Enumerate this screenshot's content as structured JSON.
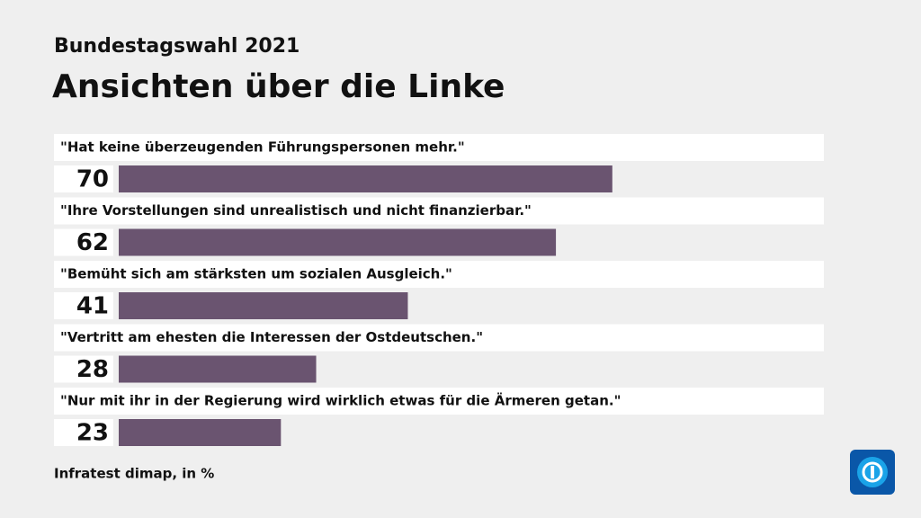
{
  "chart_data": {
    "type": "hbar",
    "subtitle": "Bundestagswahl 2021",
    "title": "Ansichten über die Linke",
    "categories": [
      "\"Hat keine überzeugenden Führungspersonen mehr.\"",
      "\"Ihre Vorstellungen sind unrealistisch und nicht finanzierbar.\"",
      "\"Bemüht sich am stärksten um sozialen Ausgleich.\"",
      "\"Vertritt am ehesten die Interessen der Ostdeutschen.\"",
      "\"Nur mit ihr in der Regierung wird wirklich etwas für die Ärmeren getan.\""
    ],
    "values": [
      70,
      62,
      41,
      28,
      23
    ],
    "color": "#6a5470",
    "xlim": [
      0,
      100
    ],
    "source": "Infratest dimap, in %"
  }
}
